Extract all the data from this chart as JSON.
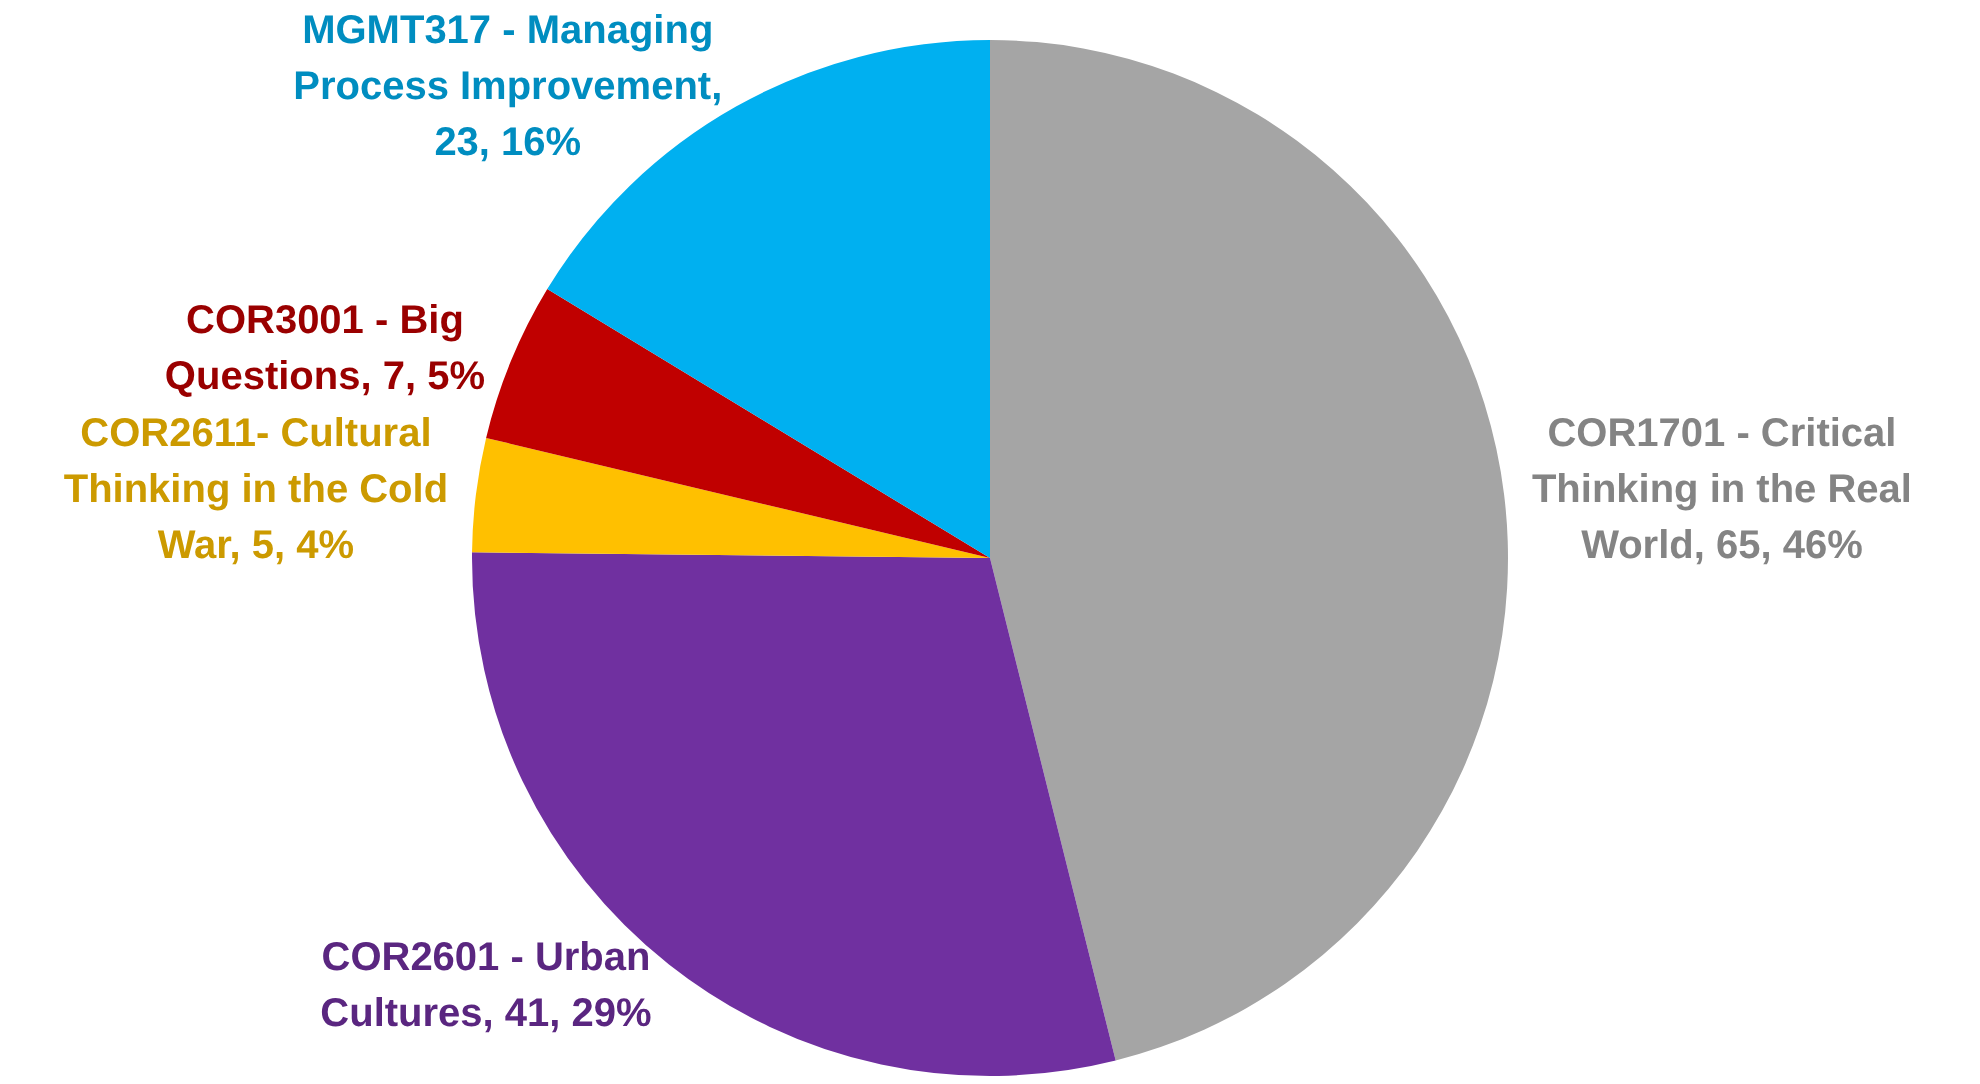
{
  "chart_data": {
    "type": "pie",
    "categories": [
      "COR1701 - Critical Thinking in the Real World",
      "COR2601 - Urban Cultures",
      "COR2611- Cultural Thinking in the Cold War",
      "COR3001 - Big Questions",
      "MGMT317 - Managing Process Improvement"
    ],
    "values": [
      65,
      41,
      5,
      7,
      23
    ],
    "colors": [
      "#a5a5a5",
      "#7030a0",
      "#ffc000",
      "#c00000",
      "#00b0f0"
    ],
    "value_labels": [
      ", 65, 46%",
      ", 41, 29%",
      ", 5, 4%",
      ", 7, 5%",
      ", 23, 16%"
    ],
    "legend": false
  }
}
